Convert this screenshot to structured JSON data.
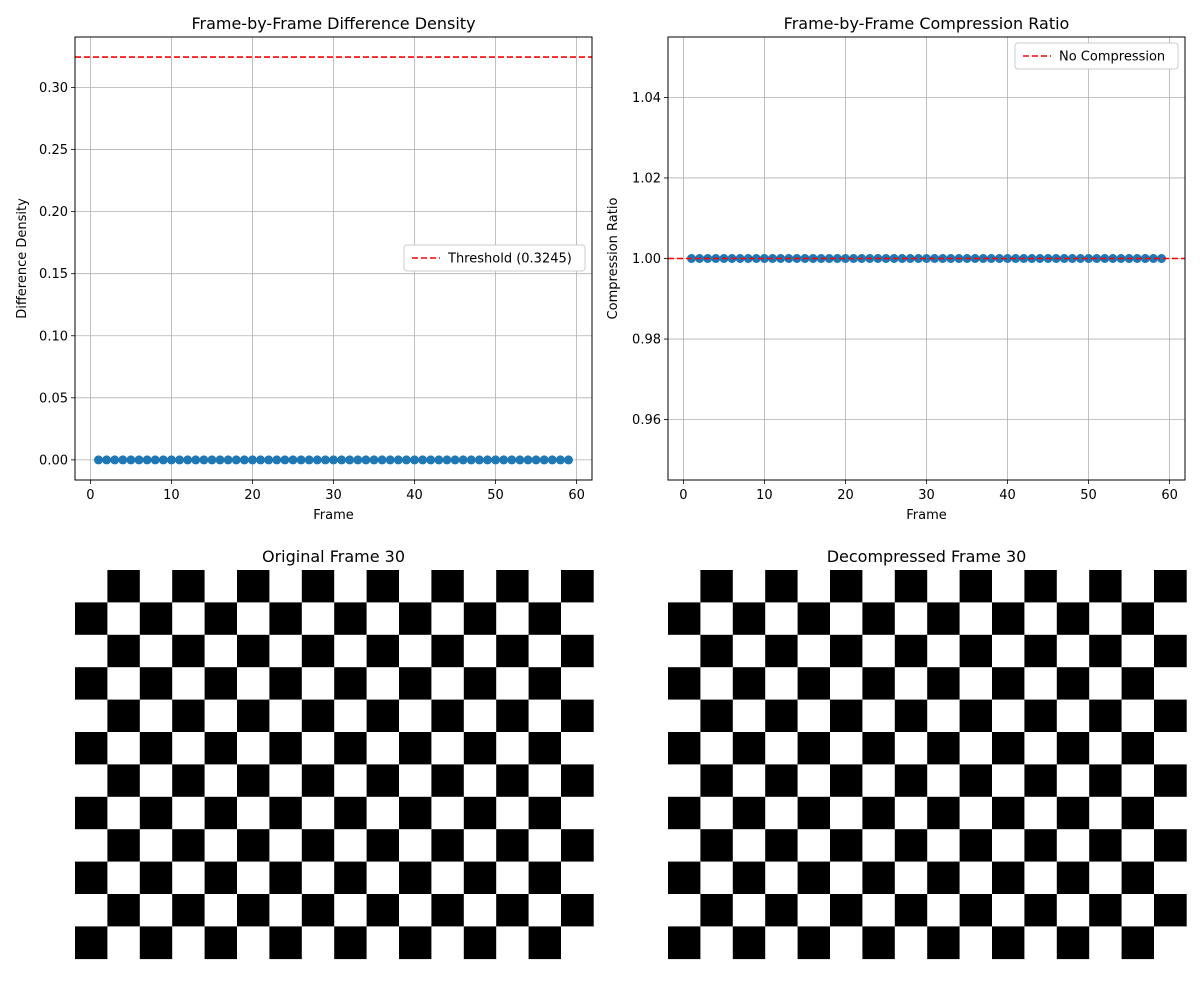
{
  "chart_data": [
    {
      "type": "scatter",
      "title": "Frame-by-Frame Difference Density",
      "xlabel": "Frame",
      "ylabel": "Difference Density",
      "xlim": [
        -1.9,
        61.9
      ],
      "ylim": [
        -0.0162,
        0.3407
      ],
      "xticks": [
        0,
        10,
        20,
        30,
        40,
        50,
        60
      ],
      "xtick_labels": [
        "0",
        "10",
        "20",
        "30",
        "40",
        "50",
        "60"
      ],
      "yticks": [
        0,
        0.05,
        0.1,
        0.15,
        0.2,
        0.25,
        0.3
      ],
      "ytick_labels": [
        "0.00",
        "0.05",
        "0.10",
        "0.15",
        "0.20",
        "0.25",
        "0.30"
      ],
      "grid": true,
      "x_start": 1,
      "x_end": 59,
      "y_value": 0.0,
      "series_color": "#1f77b4",
      "marker": "circle",
      "reference_line": {
        "value": 0.3245,
        "label": "Threshold (0.3245)",
        "color": "#ff0000",
        "style": "dashed"
      },
      "legend": {
        "placement": "center-right"
      }
    },
    {
      "type": "scatter",
      "title": "Frame-by-Frame Compression Ratio",
      "xlabel": "Frame",
      "ylabel": "Compression Ratio",
      "xlim": [
        -1.9,
        61.9
      ],
      "ylim": [
        0.945,
        1.055
      ],
      "xticks": [
        0,
        10,
        20,
        30,
        40,
        50,
        60
      ],
      "xtick_labels": [
        "0",
        "10",
        "20",
        "30",
        "40",
        "50",
        "60"
      ],
      "yticks": [
        0.96,
        0.98,
        1.0,
        1.02,
        1.04
      ],
      "ytick_labels": [
        "0.96",
        "0.98",
        "1.00",
        "1.02",
        "1.04"
      ],
      "grid": true,
      "x_start": 1,
      "x_end": 59,
      "y_value": 1.0,
      "series_color": "#1f77b4",
      "marker": "circle",
      "reference_line": {
        "value": 1.0,
        "label": "No Compression",
        "color": "#ff0000",
        "style": "dashed"
      },
      "legend": {
        "placement": "top-right"
      }
    },
    {
      "type": "heatmap",
      "title": "Original Frame 30",
      "pattern": "checkerboard",
      "colors": [
        "#000000",
        "#ffffff"
      ]
    },
    {
      "type": "heatmap",
      "title": "Decompressed Frame 30",
      "pattern": "checkerboard",
      "colors": [
        "#000000",
        "#ffffff"
      ]
    }
  ]
}
